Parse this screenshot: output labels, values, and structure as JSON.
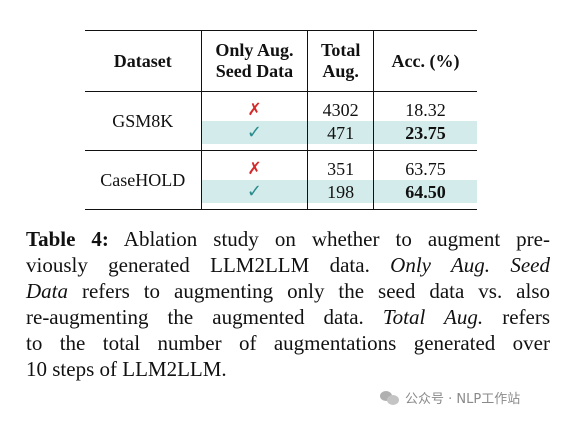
{
  "table": {
    "headers": {
      "dataset": "Dataset",
      "only_aug_line1": "Only Aug.",
      "only_aug_line2": "Seed Data",
      "total_line1": "Total",
      "total_line2": "Aug.",
      "acc": "Acc. (%)"
    },
    "groups": [
      {
        "dataset": "GSM8K",
        "rows": [
          {
            "only_aug_icon": "cross-icon",
            "only_aug_symbol": "✗",
            "total": "4302",
            "acc": "18.32",
            "highlight": false,
            "bold": false
          },
          {
            "only_aug_icon": "check-icon",
            "only_aug_symbol": "✓",
            "total": "471",
            "acc": "23.75",
            "highlight": true,
            "bold": true
          }
        ]
      },
      {
        "dataset": "CaseHOLD",
        "rows": [
          {
            "only_aug_icon": "cross-icon",
            "only_aug_symbol": "✗",
            "total": "351",
            "acc": "63.75",
            "highlight": false,
            "bold": false
          },
          {
            "only_aug_icon": "check-icon",
            "only_aug_symbol": "✓",
            "total": "198",
            "acc": "64.50",
            "highlight": true,
            "bold": true
          }
        ]
      }
    ],
    "colors": {
      "highlight": "#d3ebea",
      "cross": "#d42a2a",
      "check": "#2a8c8c"
    }
  },
  "caption": {
    "label": "Table 4:",
    "l1": " Ablation study on whether to augment pre-",
    "l2": "viously generated LLM2LLM data. ",
    "l2_em": "Only Aug. Seed",
    "l3_em": "Data",
    "l3": " refers to augmenting only the seed data vs. also",
    "l4": "re-augmenting the augmented data. ",
    "l4_em": "Total Aug.",
    "l4b": " refers",
    "l5": "to the total number of augmentations generated over",
    "l6": "10 steps of LLM2LLM."
  },
  "watermark": {
    "icon": "wechat-icon",
    "text": "公众号 · NLP工作站"
  }
}
